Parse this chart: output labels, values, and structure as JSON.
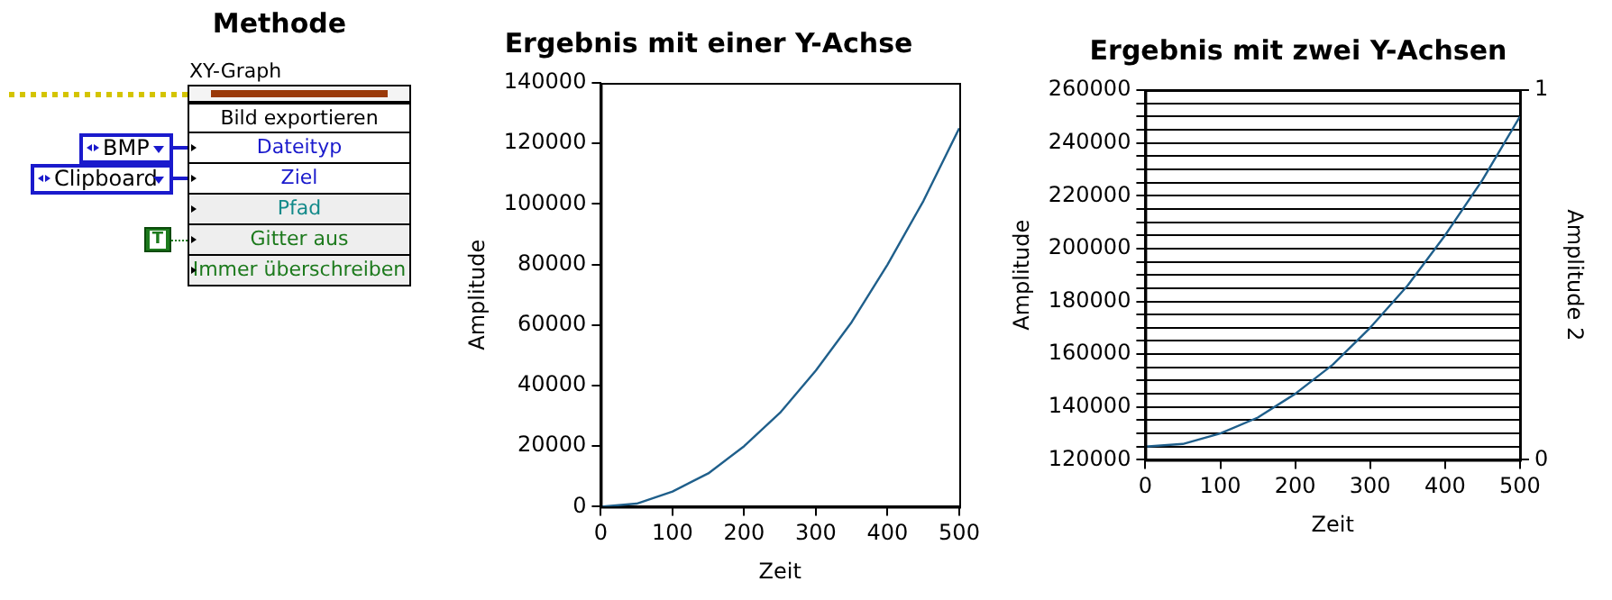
{
  "chart_data": [
    {
      "type": "other",
      "title": "Methode",
      "annotations": [
        "XY-Graph",
        "Bild exportieren",
        "Dateityp",
        "Ziel",
        "Pfad",
        "Gitter aus",
        "Immer überschreiben",
        "BMP",
        "Clipboard",
        "T"
      ]
    },
    {
      "type": "line",
      "title": "Ergebnis mit einer Y-Achse",
      "xlabel": "Zeit",
      "ylabel": "Amplitude",
      "x": [
        0,
        50,
        100,
        150,
        200,
        250,
        300,
        350,
        400,
        450,
        500
      ],
      "series": [
        {
          "color": "#1f5f8b",
          "values": [
            0,
            1000,
            5000,
            11000,
            20000,
            31000,
            45000,
            61000,
            80000,
            101000,
            125000
          ]
        }
      ],
      "xlim": [
        0,
        500
      ],
      "xticks": [
        0,
        100,
        200,
        300,
        400,
        500
      ],
      "ylim": [
        0,
        140000
      ],
      "yticks": [
        0,
        20000,
        40000,
        60000,
        80000,
        100000,
        120000,
        140000
      ],
      "grid": false,
      "legend": false,
      "marker": "none"
    },
    {
      "type": "line",
      "title": "Ergebnis mit zwei Y-Achsen",
      "xlabel": "Zeit",
      "ylabel": "Amplitude",
      "y2label": "Amplitude 2",
      "x": [
        0,
        50,
        100,
        150,
        200,
        250,
        300,
        350,
        400,
        450,
        500
      ],
      "series": [
        {
          "color": "#1f5f8b",
          "values": [
            125000,
            126000,
            130000,
            136000,
            145000,
            156000,
            170000,
            186000,
            205000,
            226000,
            250000
          ]
        }
      ],
      "xlim": [
        0,
        500
      ],
      "xticks": [
        0,
        100,
        200,
        300,
        400,
        500
      ],
      "ylim": [
        120000,
        260000
      ],
      "yticks": [
        120000,
        {
          "value": 125000,
          "label": null
        },
        {
          "value": 130000,
          "label": null
        },
        {
          "value": 135000,
          "label": null
        },
        140000,
        {
          "value": 145000,
          "label": null
        },
        {
          "value": 150000,
          "label": null
        },
        {
          "value": 155000,
          "label": null
        },
        160000,
        {
          "value": 165000,
          "label": null
        },
        {
          "value": 170000,
          "label": null
        },
        {
          "value": 175000,
          "label": null
        },
        180000,
        {
          "value": 185000,
          "label": null
        },
        {
          "value": 190000,
          "label": null
        },
        {
          "value": 195000,
          "label": null
        },
        200000,
        {
          "value": 205000,
          "label": null
        },
        {
          "value": 210000,
          "label": null
        },
        {
          "value": 215000,
          "label": null
        },
        220000,
        {
          "value": 225000,
          "label": null
        },
        {
          "value": 230000,
          "label": null
        },
        {
          "value": 235000,
          "label": null
        },
        240000,
        {
          "value": 245000,
          "label": null
        },
        {
          "value": 250000,
          "label": null
        },
        {
          "value": 255000,
          "label": null
        },
        260000
      ],
      "y2lim": [
        0,
        1
      ],
      "y2ticks": [
        0,
        1
      ],
      "grid": "y",
      "legend": false,
      "marker": "none"
    }
  ]
}
